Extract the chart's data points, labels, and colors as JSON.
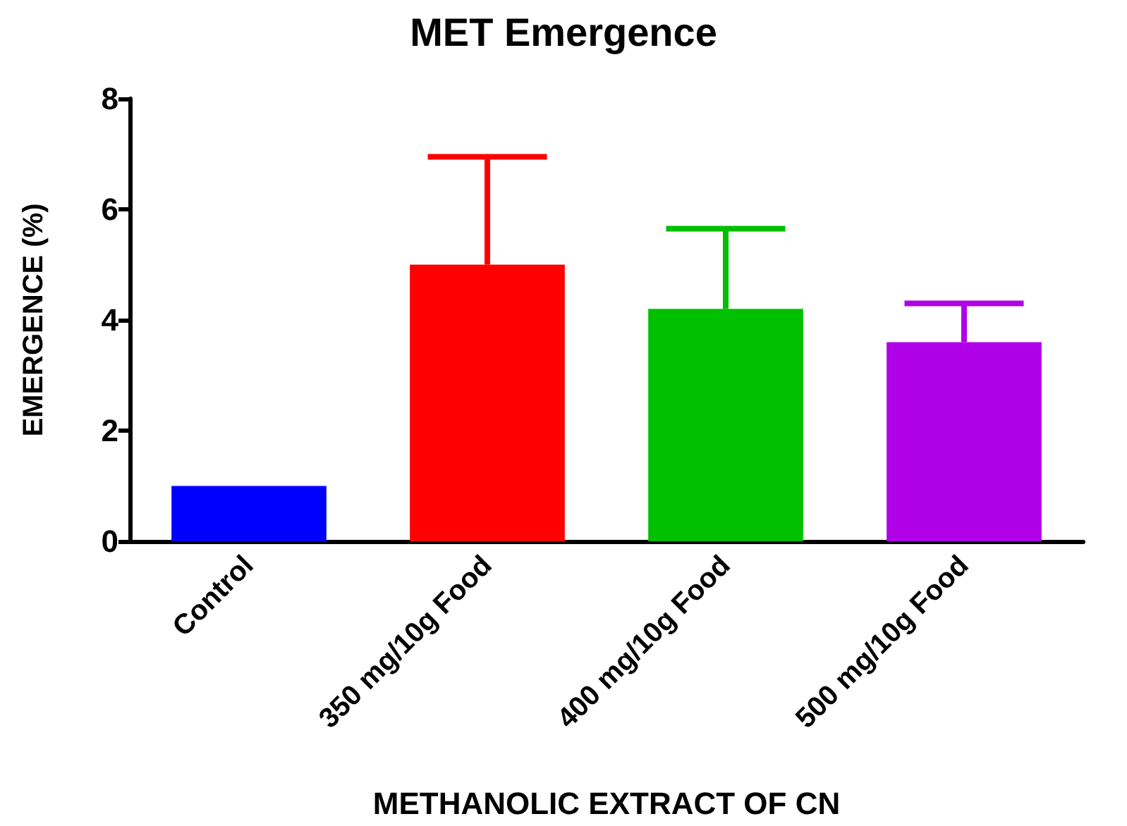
{
  "chart_data": {
    "type": "bar",
    "title": "MET Emergence",
    "xlabel": "METHANOLIC EXTRACT OF CN",
    "ylabel": "EMERGENCE (%)",
    "categories": [
      "Control",
      "350 mg/10g Food",
      "400 mg/10g Food",
      "500 mg/10g Food"
    ],
    "values": [
      1,
      5,
      4.2,
      3.6
    ],
    "colors": [
      "#0000ff",
      "#ff0000",
      "#00c000",
      "#b000e8"
    ],
    "errors": [
      null,
      [
        5,
        6.95
      ],
      [
        4.2,
        5.65
      ],
      [
        3.6,
        4.3
      ]
    ],
    "ylim": [
      0,
      8
    ],
    "yticks": [
      0,
      2,
      4,
      6,
      8
    ],
    "grid": false
  }
}
